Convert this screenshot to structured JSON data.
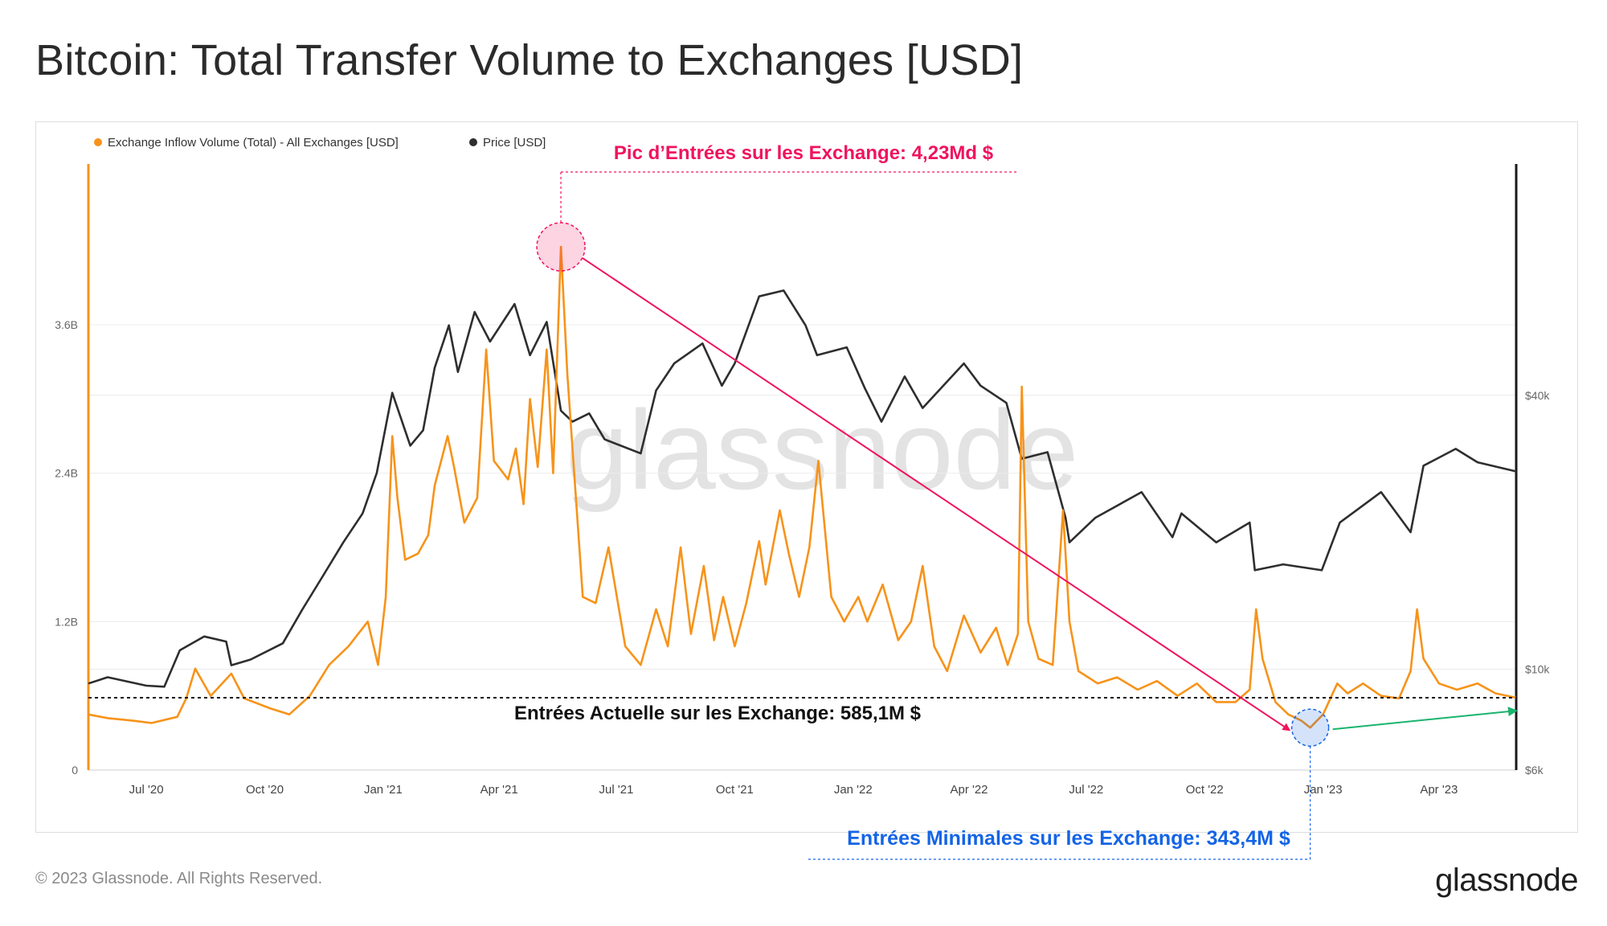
{
  "title": "Bitcoin: Total Transfer Volume to Exchanges [USD]",
  "footer": {
    "copyright": "© 2023 Glassnode. All Rights Reserved.",
    "brand": "glassnode"
  },
  "watermark": "glassnode",
  "colors": {
    "inflow": "#f7931a",
    "price": "#2e2e2e",
    "peak_annotation": "#f0135f",
    "min_annotation": "#1464e6",
    "trend_arrow": "#19b46e"
  },
  "chart_data": {
    "type": "line",
    "x_range": [
      "2020-05-17",
      "2023-05-31"
    ],
    "x_ticks": [
      "Jul '20",
      "Oct '20",
      "Jan '21",
      "Apr '21",
      "Jul '21",
      "Oct '21",
      "Jan '22",
      "Apr '22",
      "Jul '22",
      "Oct '22",
      "Jan '23",
      "Apr '23"
    ],
    "y_left": {
      "ticks": [
        "0",
        "1.2B",
        "2.4B",
        "3.6B"
      ],
      "range": [
        0,
        4.9
      ]
    },
    "y_right": {
      "ticks": [
        "$6k",
        "$10k",
        "$40k"
      ],
      "scale": "log",
      "range": [
        6000,
        129000
      ]
    },
    "grid": true,
    "legend_position": "top-left",
    "series": [
      {
        "name": "Exchange Inflow Volume (Total) - All Exchanges [USD]",
        "axis": "left",
        "unit": "B USD",
        "points": [
          [
            "2020-05-17",
            0.45
          ],
          [
            "2020-06-01",
            0.42
          ],
          [
            "2020-06-20",
            0.4
          ],
          [
            "2020-07-05",
            0.38
          ],
          [
            "2020-07-25",
            0.43
          ],
          [
            "2020-08-01",
            0.58
          ],
          [
            "2020-08-08",
            0.82
          ],
          [
            "2020-08-20",
            0.6
          ],
          [
            "2020-09-05",
            0.78
          ],
          [
            "2020-09-15",
            0.58
          ],
          [
            "2020-10-05",
            0.5
          ],
          [
            "2020-10-20",
            0.45
          ],
          [
            "2020-11-05",
            0.6
          ],
          [
            "2020-11-20",
            0.85
          ],
          [
            "2020-12-05",
            1.0
          ],
          [
            "2020-12-20",
            1.2
          ],
          [
            "2020-12-28",
            0.85
          ],
          [
            "2021-01-03",
            1.4
          ],
          [
            "2021-01-08",
            2.7
          ],
          [
            "2021-01-12",
            2.2
          ],
          [
            "2021-01-18",
            1.7
          ],
          [
            "2021-01-28",
            1.75
          ],
          [
            "2021-02-05",
            1.9
          ],
          [
            "2021-02-10",
            2.3
          ],
          [
            "2021-02-20",
            2.7
          ],
          [
            "2021-02-25",
            2.45
          ],
          [
            "2021-03-05",
            2.0
          ],
          [
            "2021-03-15",
            2.2
          ],
          [
            "2021-03-22",
            3.4
          ],
          [
            "2021-03-28",
            2.5
          ],
          [
            "2021-04-08",
            2.35
          ],
          [
            "2021-04-14",
            2.6
          ],
          [
            "2021-04-20",
            2.15
          ],
          [
            "2021-04-25",
            3.0
          ],
          [
            "2021-05-01",
            2.45
          ],
          [
            "2021-05-08",
            3.4
          ],
          [
            "2021-05-13",
            2.4
          ],
          [
            "2021-05-19",
            4.23
          ],
          [
            "2021-05-24",
            3.2
          ],
          [
            "2021-06-05",
            1.4
          ],
          [
            "2021-06-15",
            1.35
          ],
          [
            "2021-06-25",
            1.8
          ],
          [
            "2021-07-08",
            1.0
          ],
          [
            "2021-07-20",
            0.85
          ],
          [
            "2021-08-01",
            1.3
          ],
          [
            "2021-08-10",
            1.0
          ],
          [
            "2021-08-20",
            1.8
          ],
          [
            "2021-08-28",
            1.1
          ],
          [
            "2021-09-07",
            1.65
          ],
          [
            "2021-09-15",
            1.05
          ],
          [
            "2021-09-22",
            1.4
          ],
          [
            "2021-10-01",
            1.0
          ],
          [
            "2021-10-10",
            1.35
          ],
          [
            "2021-10-20",
            1.85
          ],
          [
            "2021-10-25",
            1.5
          ],
          [
            "2021-11-05",
            2.1
          ],
          [
            "2021-11-12",
            1.75
          ],
          [
            "2021-11-20",
            1.4
          ],
          [
            "2021-11-28",
            1.8
          ],
          [
            "2021-12-05",
            2.5
          ],
          [
            "2021-12-15",
            1.4
          ],
          [
            "2021-12-25",
            1.2
          ],
          [
            "2022-01-05",
            1.4
          ],
          [
            "2022-01-12",
            1.2
          ],
          [
            "2022-01-24",
            1.5
          ],
          [
            "2022-02-05",
            1.05
          ],
          [
            "2022-02-15",
            1.2
          ],
          [
            "2022-02-24",
            1.65
          ],
          [
            "2022-03-05",
            1.0
          ],
          [
            "2022-03-15",
            0.8
          ],
          [
            "2022-03-28",
            1.25
          ],
          [
            "2022-04-10",
            0.95
          ],
          [
            "2022-04-22",
            1.15
          ],
          [
            "2022-05-01",
            0.85
          ],
          [
            "2022-05-09",
            1.1
          ],
          [
            "2022-05-12",
            3.1
          ],
          [
            "2022-05-17",
            1.2
          ],
          [
            "2022-05-25",
            0.9
          ],
          [
            "2022-06-05",
            0.85
          ],
          [
            "2022-06-13",
            2.1
          ],
          [
            "2022-06-18",
            1.2
          ],
          [
            "2022-06-25",
            0.8
          ],
          [
            "2022-07-10",
            0.7
          ],
          [
            "2022-07-25",
            0.75
          ],
          [
            "2022-08-10",
            0.65
          ],
          [
            "2022-08-25",
            0.72
          ],
          [
            "2022-09-10",
            0.6
          ],
          [
            "2022-09-25",
            0.7
          ],
          [
            "2022-10-10",
            0.55
          ],
          [
            "2022-10-25",
            0.55
          ],
          [
            "2022-11-05",
            0.65
          ],
          [
            "2022-11-10",
            1.3
          ],
          [
            "2022-11-15",
            0.9
          ],
          [
            "2022-11-25",
            0.55
          ],
          [
            "2022-12-05",
            0.45
          ],
          [
            "2022-12-15",
            0.4
          ],
          [
            "2022-12-22",
            0.343
          ],
          [
            "2023-01-01",
            0.45
          ],
          [
            "2023-01-12",
            0.7
          ],
          [
            "2023-01-20",
            0.62
          ],
          [
            "2023-02-01",
            0.7
          ],
          [
            "2023-02-15",
            0.6
          ],
          [
            "2023-03-01",
            0.58
          ],
          [
            "2023-03-10",
            0.8
          ],
          [
            "2023-03-15",
            1.3
          ],
          [
            "2023-03-20",
            0.9
          ],
          [
            "2023-04-01",
            0.7
          ],
          [
            "2023-04-15",
            0.65
          ],
          [
            "2023-05-01",
            0.7
          ],
          [
            "2023-05-15",
            0.62
          ],
          [
            "2023-05-31",
            0.585
          ]
        ]
      },
      {
        "name": "Price [USD]",
        "axis": "right",
        "unit": "USD",
        "points": [
          [
            "2020-05-17",
            9300
          ],
          [
            "2020-06-01",
            9600
          ],
          [
            "2020-07-01",
            9200
          ],
          [
            "2020-07-15",
            9150
          ],
          [
            "2020-07-27",
            11000
          ],
          [
            "2020-08-15",
            11800
          ],
          [
            "2020-09-01",
            11500
          ],
          [
            "2020-09-05",
            10200
          ],
          [
            "2020-09-20",
            10500
          ],
          [
            "2020-10-15",
            11400
          ],
          [
            "2020-10-30",
            13500
          ],
          [
            "2020-11-15",
            16000
          ],
          [
            "2020-12-01",
            19000
          ],
          [
            "2020-12-16",
            22000
          ],
          [
            "2020-12-27",
            27000
          ],
          [
            "2021-01-08",
            40500
          ],
          [
            "2021-01-22",
            31000
          ],
          [
            "2021-02-01",
            33500
          ],
          [
            "2021-02-10",
            46000
          ],
          [
            "2021-02-21",
            57000
          ],
          [
            "2021-02-28",
            45000
          ],
          [
            "2021-03-13",
            61000
          ],
          [
            "2021-03-25",
            52500
          ],
          [
            "2021-04-13",
            63500
          ],
          [
            "2021-04-25",
            49000
          ],
          [
            "2021-05-08",
            58000
          ],
          [
            "2021-05-19",
            37000
          ],
          [
            "2021-05-28",
            35000
          ],
          [
            "2021-06-10",
            36500
          ],
          [
            "2021-06-22",
            32000
          ],
          [
            "2021-07-20",
            29800
          ],
          [
            "2021-08-01",
            41000
          ],
          [
            "2021-08-15",
            47000
          ],
          [
            "2021-09-06",
            52000
          ],
          [
            "2021-09-21",
            42000
          ],
          [
            "2021-10-01",
            47000
          ],
          [
            "2021-10-20",
            66000
          ],
          [
            "2021-11-08",
            68000
          ],
          [
            "2021-11-25",
            57000
          ],
          [
            "2021-12-04",
            49000
          ],
          [
            "2021-12-27",
            51000
          ],
          [
            "2022-01-10",
            41500
          ],
          [
            "2022-01-23",
            35000
          ],
          [
            "2022-02-10",
            44000
          ],
          [
            "2022-02-24",
            37500
          ],
          [
            "2022-03-28",
            47000
          ],
          [
            "2022-04-10",
            42000
          ],
          [
            "2022-04-30",
            38500
          ],
          [
            "2022-05-12",
            29000
          ],
          [
            "2022-06-01",
            30000
          ],
          [
            "2022-06-15",
            21500
          ],
          [
            "2022-06-18",
            19000
          ],
          [
            "2022-07-08",
            21500
          ],
          [
            "2022-08-13",
            24500
          ],
          [
            "2022-09-06",
            19500
          ],
          [
            "2022-09-13",
            22000
          ],
          [
            "2022-10-10",
            19000
          ],
          [
            "2022-11-05",
            21000
          ],
          [
            "2022-11-09",
            16500
          ],
          [
            "2022-12-01",
            17000
          ],
          [
            "2022-12-31",
            16500
          ],
          [
            "2023-01-14",
            21000
          ],
          [
            "2023-02-15",
            24500
          ],
          [
            "2023-03-10",
            20000
          ],
          [
            "2023-03-20",
            28000
          ],
          [
            "2023-04-14",
            30500
          ],
          [
            "2023-05-01",
            28500
          ],
          [
            "2023-05-31",
            27200
          ]
        ]
      }
    ],
    "annotations": {
      "peak": {
        "label": "Pic d’Entrées sur les Exchange: 4,23Md $",
        "date": "2021-05-19",
        "value": 4.23
      },
      "current": {
        "label": "Entrées Actuelle sur les Exchange: 585,1M $",
        "value": 0.585
      },
      "minimum": {
        "label": "Entrées Minimales sur les Exchange: 343,4M $",
        "date": "2022-12-22",
        "value": 0.343
      }
    }
  }
}
